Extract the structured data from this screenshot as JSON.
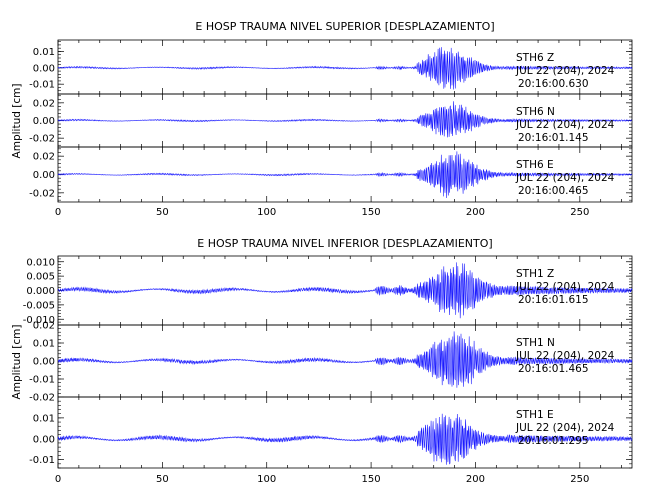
{
  "colors": {
    "trace": "#1a1aff",
    "axis": "#000000",
    "background": "#ffffff"
  },
  "chart_data": [
    {
      "type": "line",
      "title": "E HOSP TRAUMA NIVEL SUPERIOR [DESPLAZAMIENTO]",
      "ylabel": "Amplitud [cm]",
      "xlabel": "",
      "xlim": [
        0,
        275
      ],
      "xticks": [
        "0",
        "50",
        "100",
        "150",
        "200",
        "250"
      ],
      "panels": [
        {
          "station": "STH6",
          "component": "Z",
          "date": "JUL 22 (204), 2024",
          "time": "20:16:00.630",
          "ylim": [
            -0.016,
            0.017
          ],
          "yticks": [
            "0.01",
            "0.00",
            "-0.01"
          ],
          "yticks_values": [
            0.01,
            0.0,
            -0.01
          ],
          "noise_level": 0.0003,
          "pre_amp": 0.0006,
          "strong_amp": 0.014,
          "peak_time": 187
        },
        {
          "station": "STH6",
          "component": "N",
          "date": "JUL 22 (204), 2024",
          "time": "20:16:01.145",
          "ylim": [
            -0.03,
            0.03
          ],
          "yticks": [
            "0.02",
            "0.00",
            "-0.02"
          ],
          "yticks_values": [
            0.02,
            0.0,
            -0.02
          ],
          "noise_level": 0.0005,
          "pre_amp": 0.001,
          "strong_amp": 0.022,
          "peak_time": 188
        },
        {
          "station": "STH6",
          "component": "E",
          "date": "JUL 22 (204), 2024",
          "time": "20:16:00.465",
          "ylim": [
            -0.03,
            0.03
          ],
          "yticks": [
            "0.02",
            "0.00",
            "-0.02"
          ],
          "yticks_values": [
            0.02,
            0.0,
            -0.02
          ],
          "noise_level": 0.0005,
          "pre_amp": 0.0012,
          "strong_amp": 0.026,
          "peak_time": 189
        }
      ]
    },
    {
      "type": "line",
      "title": "E HOSP TRAUMA NIVEL INFERIOR [DESPLAZAMIENTO]",
      "ylabel": "Amplitud [cm]",
      "xlabel": "",
      "xlim": [
        0,
        275
      ],
      "xticks": [
        "0",
        "50",
        "100",
        "150",
        "200",
        "250"
      ],
      "panels": [
        {
          "station": "STH1",
          "component": "Z",
          "date": "JUL 22 (204), 2024",
          "time": "20:16:01.615",
          "ylim": [
            -0.012,
            0.012
          ],
          "yticks": [
            "0.010",
            "0.005",
            "0.000",
            "-0.005",
            "-0.010"
          ],
          "yticks_values": [
            0.01,
            0.005,
            0.0,
            -0.005,
            -0.01
          ],
          "noise_level": 0.0004,
          "pre_amp": 0.0012,
          "strong_amp": 0.0095,
          "peak_time": 190
        },
        {
          "station": "STH1",
          "component": "N",
          "date": "JUL 22 (204), 2024",
          "time": "20:16:01.465",
          "ylim": [
            -0.02,
            0.02
          ],
          "yticks": [
            "0.02",
            "0.01",
            "0.00",
            "-0.01",
            "-0.02"
          ],
          "yticks_values": [
            0.02,
            0.01,
            0.0,
            -0.01,
            -0.02
          ],
          "noise_level": 0.0006,
          "pre_amp": 0.0015,
          "strong_amp": 0.017,
          "peak_time": 190
        },
        {
          "station": "STH1",
          "component": "E",
          "date": "JUL 22 (204), 2024",
          "time": "20:16:01.295",
          "ylim": [
            -0.014,
            0.02
          ],
          "yticks": [
            "0.01",
            "0.00",
            "-0.01"
          ],
          "yticks_values": [
            0.01,
            0.0,
            -0.01
          ],
          "noise_level": 0.0006,
          "pre_amp": 0.0012,
          "strong_amp": 0.013,
          "peak_time": 187
        }
      ]
    }
  ]
}
